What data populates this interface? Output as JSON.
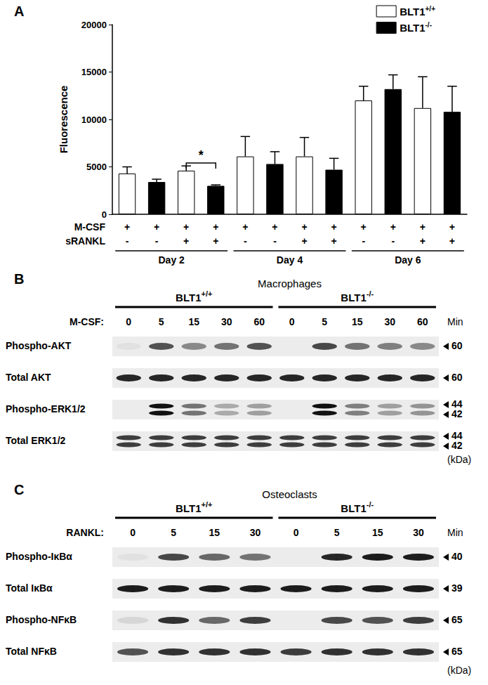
{
  "chart_data": {
    "type": "bar",
    "panel": "A",
    "categories": [
      null,
      null,
      null,
      null,
      null,
      null,
      null,
      null,
      null,
      null,
      null,
      null
    ],
    "x_rows": [
      {
        "label": "M-CSF",
        "values": [
          "+",
          "+",
          "+",
          "+",
          "+",
          "+",
          "+",
          "+",
          "+",
          "+",
          "+",
          "+"
        ]
      },
      {
        "label": "sRANKL",
        "values": [
          "-",
          "-",
          "+",
          "+",
          "-",
          "-",
          "+",
          "+",
          "-",
          "-",
          "+",
          "+"
        ]
      }
    ],
    "groups": [
      "Day 2",
      "Day 4",
      "Day 6"
    ],
    "y_label": "Fluorescence",
    "ylim": [
      0,
      20000
    ],
    "yticks": [
      0,
      5000,
      10000,
      15000,
      20000
    ],
    "grid": false,
    "legend": "top-right",
    "series": [
      {
        "name": "BLT1+/+",
        "color": "#ffffff",
        "values": [
          4300,
          null,
          4600,
          null,
          6100,
          null,
          6100,
          null,
          12000,
          null,
          11200,
          null
        ],
        "errors": [
          700,
          null,
          500,
          null,
          2100,
          null,
          2000,
          null,
          1500,
          null,
          3300,
          null
        ]
      },
      {
        "name": "BLT1-/-",
        "color": "#000000",
        "values": [
          null,
          3400,
          null,
          3000,
          null,
          5300,
          null,
          4700,
          null,
          13200,
          null,
          10800
        ],
        "errors": [
          null,
          300,
          null,
          100,
          null,
          1300,
          null,
          1200,
          null,
          1500,
          null,
          2700
        ]
      }
    ],
    "annotations": [
      {
        "text": "*",
        "between": [
          2,
          3
        ],
        "y": 5400
      }
    ]
  },
  "blots": [
    {
      "panel": "B",
      "title": "Macrophages",
      "stimulus": "M-CSF:",
      "genotypes": [
        "BLT1+/+",
        "BLT1-/-"
      ],
      "times": [
        0,
        5,
        15,
        30,
        60
      ],
      "time_unit": "Min",
      "mw_unit": "(kDa)",
      "rows": [
        {
          "label": "Phospho-AKT",
          "markers": [
            60
          ],
          "intensity": [
            0.05,
            0.7,
            0.45,
            0.55,
            0.7,
            0.0,
            0.75,
            0.55,
            0.5,
            0.45
          ]
        },
        {
          "label": "Total AKT",
          "markers": [
            60
          ],
          "intensity": [
            0.9,
            0.9,
            0.9,
            0.9,
            0.9,
            0.9,
            0.9,
            0.9,
            0.9,
            0.9
          ]
        },
        {
          "label": "Phospho-ERK1/2",
          "markers": [
            44,
            42
          ],
          "intensity": [
            0.0,
            1.0,
            0.55,
            0.3,
            0.35,
            0.0,
            1.0,
            0.5,
            0.35,
            0.4
          ]
        },
        {
          "label": "Total ERK1/2",
          "markers": [
            44,
            42
          ],
          "intensity": [
            0.8,
            0.8,
            0.8,
            0.8,
            0.8,
            0.8,
            0.8,
            0.8,
            0.8,
            0.8
          ]
        }
      ]
    },
    {
      "panel": "C",
      "title": "Osteoclasts",
      "stimulus": "RANKL:",
      "genotypes": [
        "BLT1+/+",
        "BLT1-/-"
      ],
      "times": [
        0,
        5,
        15,
        30
      ],
      "time_unit": "Min",
      "mw_unit": "(kDa)",
      "rows": [
        {
          "label": "Phospho-IκBα",
          "markers": [
            40
          ],
          "intensity": [
            0.05,
            0.75,
            0.6,
            0.55,
            0.0,
            0.9,
            0.95,
            0.95
          ]
        },
        {
          "label": "Total IκBα",
          "markers": [
            39
          ],
          "intensity": [
            0.95,
            0.95,
            0.95,
            0.95,
            0.95,
            0.95,
            0.95,
            0.95
          ]
        },
        {
          "label": "Phospho-NFκB",
          "markers": [
            65
          ],
          "intensity": [
            0.1,
            0.85,
            0.6,
            0.8,
            0.0,
            0.75,
            0.7,
            0.8
          ]
        },
        {
          "label": "Total NFκB",
          "markers": [
            65
          ],
          "intensity": [
            0.7,
            0.85,
            0.85,
            0.85,
            0.8,
            0.85,
            0.85,
            0.85
          ]
        }
      ]
    }
  ]
}
